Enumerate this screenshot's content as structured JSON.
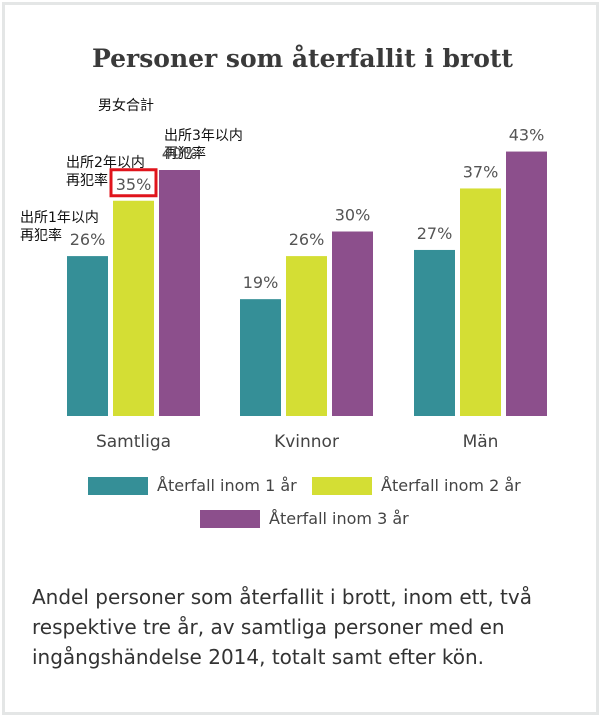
{
  "annotations": {
    "total": "男女合計",
    "y1": [
      "出所1年以内",
      "再犯率"
    ],
    "y2": [
      "出所2年以内",
      "再犯率"
    ],
    "y3": [
      "出所3年以内",
      "再犯率"
    ]
  },
  "chart_data": {
    "type": "bar",
    "title": "Personer som återfallit i brott",
    "categories": [
      "Samtliga",
      "Kvinnor",
      "Män"
    ],
    "series": [
      {
        "name": "Återfall inom 1 år",
        "values": [
          26,
          19,
          27
        ],
        "color": "#358f97"
      },
      {
        "name": "Återfall inom 2 år",
        "values": [
          35,
          26,
          37
        ],
        "color": "#d4de34"
      },
      {
        "name": "Återfall inom 3 år",
        "values": [
          40,
          30,
          43
        ],
        "color": "#8c4f8c"
      }
    ],
    "value_suffix": "%",
    "highlight": {
      "series": 1,
      "category": 0,
      "color": "#e0141c"
    },
    "xlabel": "",
    "ylabel": "",
    "ylim": [
      0,
      50
    ],
    "grid": false,
    "legend_position": "bottom"
  },
  "caption": "Andel personer som återfallit i brott, inom ett, två respektive tre år, av samtliga personer med en ingångshändelse 2014, totalt samt efter kön."
}
